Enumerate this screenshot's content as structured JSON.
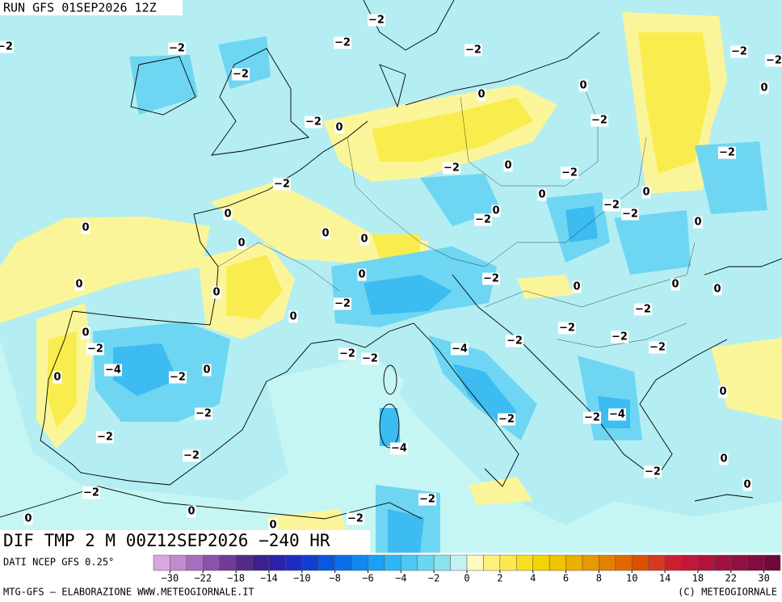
{
  "header": {
    "run": "RUN GFS 01SEP2026 12Z"
  },
  "map": {
    "title": "DIF TMP 2 M 00Z12SEP2026 −240 HR",
    "contour_labels": [
      "−2",
      "−2",
      "−2",
      "−2",
      "−2",
      "−2",
      "−2",
      "−2",
      "0",
      "0",
      "0",
      "−2",
      "0",
      "−2",
      "−2",
      "−2",
      "0",
      "−2",
      "−2",
      "0",
      "0",
      "−2",
      "−2",
      "0",
      "−2",
      "0",
      "0",
      "0",
      "0",
      "0",
      "0",
      "0",
      "−2",
      "0",
      "0",
      "0",
      "0",
      "0",
      "−2",
      "−2",
      "0",
      "0",
      "−2",
      "−2",
      "−2",
      "−2",
      "−2",
      "−2",
      "−4",
      "−2",
      "−4",
      "−2",
      "0",
      "0",
      "0",
      "−2",
      "−2",
      "−2",
      "−4",
      "−2",
      "−4",
      "−2",
      "0",
      "−2",
      "0",
      "−2",
      "−2",
      "0",
      "−2",
      "0",
      "0"
    ]
  },
  "footer": {
    "source": "DATI NCEP GFS 0.25°",
    "credit": "MTG-GFS — ELABORAZIONE WWW.METEOGIORNALE.IT",
    "copyright": "(C) METEOGIORNALE"
  },
  "colorbar": {
    "colors": [
      "#d9a6e0",
      "#c48ad0",
      "#a86cc0",
      "#8c52ac",
      "#703c98",
      "#552a88",
      "#3c2090",
      "#2a22a8",
      "#1c2cc0",
      "#1040d0",
      "#0858e0",
      "#0a70e8",
      "#1088f0",
      "#1aa0f4",
      "#30b6f6",
      "#4cc8f4",
      "#6ad6f2",
      "#8ae2f0",
      "#c4f2f2",
      "#fff8c0",
      "#fff080",
      "#fce850",
      "#f8e020",
      "#f4d400",
      "#f0c400",
      "#ecb000",
      "#e89800",
      "#e48000",
      "#e06800",
      "#dc5000",
      "#d83820",
      "#cc2030",
      "#c01838",
      "#b0143c",
      "#a01040",
      "#901044",
      "#800c40",
      "#700838"
    ],
    "ticks": [
      "−30",
      "−22",
      "−18",
      "−14",
      "−10",
      "−8",
      "−6",
      "−4",
      "−2",
      "0",
      "2",
      "4",
      "6",
      "8",
      "10",
      "14",
      "18",
      "22",
      "30"
    ]
  }
}
